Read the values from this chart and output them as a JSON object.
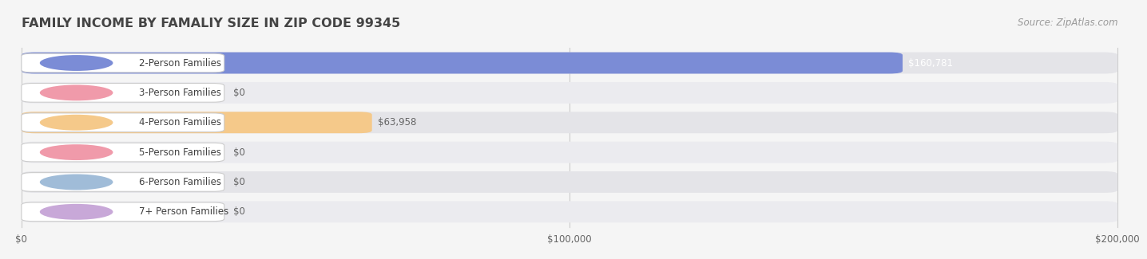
{
  "title": "FAMILY INCOME BY FAMALIY SIZE IN ZIP CODE 99345",
  "source": "Source: ZipAtlas.com",
  "categories": [
    "2-Person Families",
    "3-Person Families",
    "4-Person Families",
    "5-Person Families",
    "6-Person Families",
    "7+ Person Families"
  ],
  "values": [
    160781,
    0,
    63958,
    0,
    0,
    0
  ],
  "bar_colors": [
    "#7b8cd6",
    "#f09aaa",
    "#f5c98a",
    "#f09aaa",
    "#a0bcd8",
    "#c8a8d8"
  ],
  "value_labels": [
    "$160,781",
    "$0",
    "$63,958",
    "$0",
    "$0",
    "$0"
  ],
  "value_label_colors": [
    "white",
    "#666666",
    "#666666",
    "#666666",
    "#666666",
    "#666666"
  ],
  "xlim": [
    0,
    200000
  ],
  "xticks": [
    0,
    100000,
    200000
  ],
  "xtick_labels": [
    "$0",
    "$100,000",
    "$200,000"
  ],
  "bg_color": "#f5f5f5",
  "bar_bg_color": "#e4e4e8",
  "bar_bg_color2": "#ebebef",
  "title_color": "#444444",
  "source_color": "#999999",
  "title_fontsize": 11.5,
  "label_fontsize": 8.5,
  "value_fontsize": 8.5,
  "source_fontsize": 8.5,
  "bar_height": 0.68,
  "bar_gap": 0.32
}
